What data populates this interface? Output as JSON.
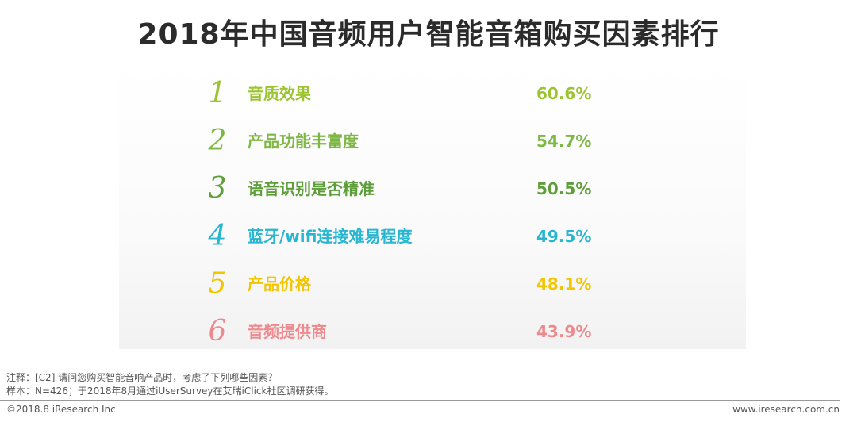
{
  "title": "2018年中国音频用户智能音箱购买因素排行",
  "chart_data": {
    "type": "table",
    "title": "2018年中国音频用户智能音箱购买因素排行",
    "rows": [
      {
        "rank": "1",
        "label": "音质效果",
        "value": "60.6%",
        "color": "#9BC430"
      },
      {
        "rank": "2",
        "label": "产品功能丰富度",
        "value": "54.7%",
        "color": "#7DB843"
      },
      {
        "rank": "3",
        "label": "语音识别是否精准",
        "value": "50.5%",
        "color": "#5E9E3A"
      },
      {
        "rank": "4",
        "label": "蓝牙/wifi连接难易程度",
        "value": "49.5%",
        "color": "#29B6D1"
      },
      {
        "rank": "5",
        "label": "产品价格",
        "value": "48.1%",
        "color": "#F2C500"
      },
      {
        "rank": "6",
        "label": "音频提供商",
        "value": "43.9%",
        "color": "#EE8A8E"
      }
    ]
  },
  "notes": {
    "line1": "注释：[C2] 请问您购买智能音响产品时，考虑了下列哪些因素？",
    "line2": "样本：N=426；于2018年8月通过iUserSurvey在艾瑞iClick社区调研获得。"
  },
  "footer": {
    "copyright": "©2018.8 iResearch Inc",
    "website": "www.iresearch.com.cn"
  }
}
